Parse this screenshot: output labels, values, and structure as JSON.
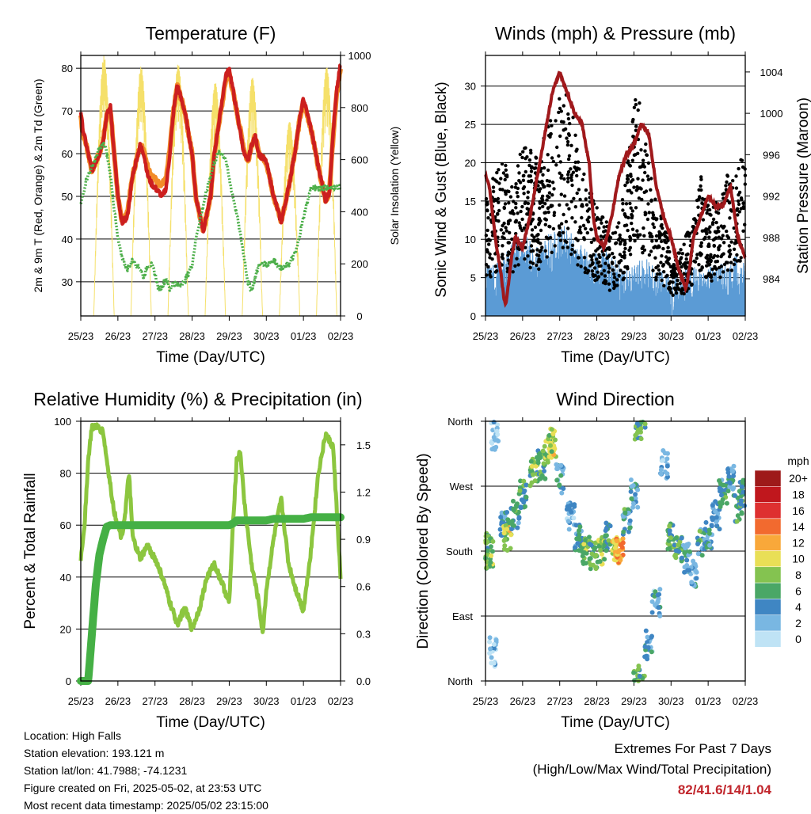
{
  "footer": {
    "location": "Location: High Falls",
    "elevation": "Station elevation: 193.121 m",
    "latlon": "Station lat/lon: 41.7988; -74.1231",
    "created": "Figure created on Fri, 2025-05-02, at 23:53 UTC",
    "recent": "Most recent data timestamp: 2025/05/02 23:15:00"
  },
  "extremes": {
    "line1": "Extremes For Past 7 Days",
    "line2": "(High/Low/Max Wind/Total Precipitation)",
    "values": "82/41.6/14/1.04"
  },
  "colors": {
    "temp_2m": "#cc1f1f",
    "temp_9m": "#f28c28",
    "dewpoint": "#4daf4a",
    "solar": "#f5e06a",
    "wind": "#5b9bd5",
    "gust": "#000000",
    "pressure": "#a0191c",
    "rh": "#8cc63f",
    "precip": "#45b045"
  },
  "chart_data": [
    {
      "type": "line",
      "title": "Temperature (F)",
      "xlabel": "Time (Day/UTC)",
      "ylabel": "2m & 9m T (Red, Orange) & 2m Td (Green)",
      "y2label": "Solar Insolation (Yellow)",
      "xticks": [
        "25/23",
        "26/23",
        "27/23",
        "28/23",
        "29/23",
        "30/23",
        "01/23",
        "02/23"
      ],
      "ylim": [
        22,
        83
      ],
      "yticks": [
        30,
        40,
        50,
        60,
        70,
        80
      ],
      "y2lim": [
        0,
        1000
      ],
      "y2ticks": [
        0,
        200,
        400,
        600,
        800,
        1000
      ],
      "grid": "horizontal",
      "x": [
        0,
        0.05,
        0.15,
        0.3,
        0.4,
        0.5,
        0.6,
        0.65,
        0.7,
        0.8,
        0.9,
        1.0,
        1.1,
        1.25,
        1.4,
        1.6,
        1.7,
        1.8,
        1.9,
        2.0,
        2.1,
        2.2,
        2.3,
        2.4,
        2.5,
        2.6,
        2.8,
        3.0,
        3.1,
        3.3,
        3.5,
        3.6,
        3.7,
        3.8,
        3.9,
        4.0,
        4.2,
        4.4,
        4.5,
        4.6,
        4.7,
        4.8,
        5.0,
        5.2,
        5.4,
        5.6,
        5.8,
        5.9,
        6.0,
        6.2,
        6.4,
        6.6,
        6.7,
        6.8,
        6.9,
        7.0
      ],
      "series": [
        {
          "name": "2m T",
          "values": [
            70,
            66,
            62,
            56,
            58,
            60,
            63,
            66,
            69,
            71,
            60,
            50,
            44,
            45,
            55,
            62,
            60,
            55,
            53,
            52,
            51,
            50,
            52,
            60,
            70,
            76,
            70,
            60,
            50,
            42,
            50,
            60,
            66,
            72,
            78,
            80,
            70,
            60,
            58,
            62,
            64,
            60,
            58,
            50,
            44,
            52,
            62,
            68,
            73,
            66,
            57,
            49,
            51,
            65,
            75,
            81
          ]
        },
        {
          "name": "9m T",
          "values": [
            69,
            65,
            62,
            56,
            58,
            60,
            63,
            66,
            69,
            70,
            60,
            50,
            44,
            46,
            55,
            62,
            61,
            57,
            55,
            54,
            53,
            53,
            54,
            61,
            70,
            76,
            70,
            60,
            50,
            42,
            50,
            60,
            66,
            71,
            77,
            79,
            70,
            61,
            58,
            62,
            64,
            60,
            58,
            50,
            44,
            52,
            62,
            68,
            72,
            66,
            57,
            49,
            51,
            64,
            74,
            80
          ]
        },
        {
          "name": "2m Td",
          "values": [
            48,
            50,
            54,
            57,
            59,
            61,
            62,
            62,
            60,
            55,
            47,
            40,
            36,
            33,
            35,
            33,
            31,
            34,
            34,
            32,
            28,
            29,
            31,
            28,
            30,
            29,
            30,
            34,
            40,
            48,
            55,
            58,
            60,
            60,
            59,
            54,
            46,
            36,
            30,
            28,
            31,
            34,
            34,
            35,
            33,
            34,
            37,
            41,
            45,
            52,
            52,
            52,
            52,
            52,
            52,
            52
          ]
        }
      ],
      "solar": {
        "peaks": [
          1000,
          960,
          970,
          900,
          920,
          750,
          960,
          900
        ]
      }
    },
    {
      "type": "scatter",
      "title": "Winds (mph) & Pressure (mb)",
      "xlabel": "Time (Day/UTC)",
      "ylabel": "Sonic Wind & Gust (Blue, Black)",
      "y2label": "Station Pressure (Maroon)",
      "xticks": [
        "25/23",
        "26/23",
        "27/23",
        "28/23",
        "29/23",
        "30/23",
        "01/23",
        "02/23"
      ],
      "ylim": [
        0,
        34
      ],
      "yticks": [
        0,
        5,
        10,
        15,
        20,
        25,
        30
      ],
      "y2lim": [
        980.4,
        1005.6
      ],
      "y2ticks": [
        984,
        988,
        992,
        996,
        1000,
        1004
      ],
      "grid": "horizontal",
      "series": [
        {
          "name": "Station Pressure",
          "x": [
            0,
            0.1,
            0.2,
            0.3,
            0.4,
            0.5,
            0.55,
            0.6,
            0.7,
            0.8,
            1.0,
            1.2,
            1.4,
            1.6,
            1.8,
            2.0,
            2.2,
            2.4,
            2.6,
            2.8,
            2.9,
            3.0,
            3.2,
            3.4,
            3.6,
            3.8,
            4.0,
            4.2,
            4.4,
            4.6,
            4.8,
            5.0,
            5.2,
            5.4,
            5.5,
            5.6,
            5.8,
            6.0,
            6.2,
            6.4,
            6.6,
            6.8,
            7.0
          ],
          "values": [
            994,
            993,
            990,
            987,
            985,
            982,
            981.5,
            983,
            986,
            988,
            987,
            990,
            994,
            998,
            1002,
            1004,
            1002,
            1000,
            999,
            995,
            990,
            988,
            987,
            990,
            994,
            996,
            997,
            999,
            998,
            993,
            990,
            988,
            985,
            983,
            985,
            988,
            990,
            992,
            991,
            991,
            993,
            988,
            986
          ]
        },
        {
          "name": "Sonic Wind",
          "mean": [
            4,
            4,
            5,
            7,
            8,
            7,
            6,
            8,
            8,
            9,
            7,
            6,
            5,
            6,
            5,
            4,
            3,
            4,
            5,
            3,
            3,
            2,
            3,
            4,
            3,
            4,
            4,
            4,
            5,
            4
          ],
          "x_start": 0,
          "x_end": 7.0
        },
        {
          "name": "Gust",
          "mean": [
            10,
            12,
            13,
            12,
            15,
            14,
            13,
            17,
            18,
            20,
            16,
            12,
            10,
            9,
            7,
            8,
            14,
            20,
            15,
            10,
            8,
            5,
            6,
            8,
            12,
            9,
            10,
            12,
            13,
            14
          ],
          "x_start": 0,
          "x_end": 7.0
        }
      ]
    },
    {
      "type": "line",
      "title": "Relative Humidity (%) & Precipitation (in)",
      "xlabel": "Time (Day/UTC)",
      "ylabel": "Percent & Total Rainfall",
      "xticks": [
        "25/23",
        "26/23",
        "27/23",
        "28/23",
        "29/23",
        "30/23",
        "01/23",
        "02/23"
      ],
      "ylim": [
        0,
        100
      ],
      "yticks": [
        0,
        20,
        40,
        60,
        80,
        100
      ],
      "y2lim": [
        0,
        1.65
      ],
      "y2ticks": [
        "0.0",
        "0.3",
        "0.6",
        "0.9",
        "1.2",
        "1.5"
      ],
      "grid": "horizontal",
      "x": [
        0,
        0.1,
        0.2,
        0.3,
        0.4,
        0.5,
        0.6,
        0.7,
        0.8,
        0.9,
        1.0,
        1.1,
        1.2,
        1.3,
        1.4,
        1.6,
        1.8,
        2.0,
        2.2,
        2.4,
        2.6,
        2.8,
        3.0,
        3.2,
        3.4,
        3.6,
        3.8,
        4.0,
        4.1,
        4.2,
        4.3,
        4.4,
        4.6,
        4.8,
        4.9,
        5.0,
        5.2,
        5.4,
        5.6,
        5.8,
        6.0,
        6.2,
        6.4,
        6.6,
        6.8,
        7.0
      ],
      "series": [
        {
          "name": "Relative Humidity",
          "values": [
            47,
            60,
            85,
            98,
            98,
            97,
            96,
            85,
            75,
            65,
            60,
            55,
            65,
            80,
            55,
            47,
            52,
            47,
            40,
            30,
            22,
            28,
            20,
            28,
            40,
            45,
            38,
            30,
            60,
            85,
            88,
            70,
            45,
            30,
            18,
            35,
            55,
            70,
            45,
            35,
            27,
            50,
            80,
            95,
            90,
            40
          ]
        },
        {
          "name": "Total Precipitation",
          "values": [
            0,
            0,
            0,
            0.3,
            0.6,
            0.8,
            0.9,
            0.98,
            0.99,
            0.99,
            0.99,
            0.99,
            0.99,
            0.99,
            0.99,
            0.99,
            0.99,
            0.99,
            0.99,
            0.99,
            0.99,
            0.99,
            0.99,
            0.99,
            0.99,
            0.99,
            0.99,
            0.99,
            1.0,
            1.02,
            1.02,
            1.02,
            1.02,
            1.02,
            1.02,
            1.02,
            1.03,
            1.03,
            1.03,
            1.03,
            1.03,
            1.04,
            1.04,
            1.04,
            1.04,
            1.04
          ]
        }
      ]
    },
    {
      "type": "scatter",
      "title": "Wind Direction",
      "xlabel": "Time (Day/UTC)",
      "ylabel": "Direction (Colored By Speed)",
      "xticks": [
        "25/23",
        "26/23",
        "27/23",
        "28/23",
        "29/23",
        "30/23",
        "01/23",
        "02/23"
      ],
      "yticks": [
        "North",
        "East",
        "South",
        "West",
        "North"
      ],
      "ylim": [
        0,
        360
      ],
      "grid": "horizontal",
      "legend": {
        "position": "right",
        "title": "mph",
        "labels": [
          "20+",
          "18",
          "16",
          "14",
          "12",
          "10",
          "8",
          "6",
          "4",
          "2",
          "0"
        ],
        "colors": [
          "#9e1a1a",
          "#c0171d",
          "#de3030",
          "#f26a2f",
          "#f9a83a",
          "#e9df56",
          "#84c350",
          "#4aa766",
          "#3f86c3",
          "#79b7e2",
          "#bfe3f5"
        ]
      },
      "points": [
        {
          "x": 0.05,
          "dir": 185,
          "speed": 7
        },
        {
          "x": 0.1,
          "dir": 175,
          "speed": 8
        },
        {
          "x": 0.2,
          "dir": 40,
          "speed": 1
        },
        {
          "x": 0.25,
          "dir": 340,
          "speed": 1
        },
        {
          "x": 0.5,
          "dir": 220,
          "speed": 4
        },
        {
          "x": 0.6,
          "dir": 200,
          "speed": 9
        },
        {
          "x": 0.8,
          "dir": 230,
          "speed": 5
        },
        {
          "x": 1.0,
          "dir": 260,
          "speed": 6
        },
        {
          "x": 1.3,
          "dir": 290,
          "speed": 7
        },
        {
          "x": 1.5,
          "dir": 300,
          "speed": 6
        },
        {
          "x": 1.7,
          "dir": 320,
          "speed": 8
        },
        {
          "x": 1.8,
          "dir": 330,
          "speed": 9
        },
        {
          "x": 2.0,
          "dir": 280,
          "speed": 4
        },
        {
          "x": 2.3,
          "dir": 230,
          "speed": 3
        },
        {
          "x": 2.5,
          "dir": 200,
          "speed": 5
        },
        {
          "x": 2.7,
          "dir": 180,
          "speed": 7
        },
        {
          "x": 2.9,
          "dir": 175,
          "speed": 6
        },
        {
          "x": 3.1,
          "dir": 180,
          "speed": 8
        },
        {
          "x": 3.3,
          "dir": 200,
          "speed": 5
        },
        {
          "x": 3.5,
          "dir": 180,
          "speed": 11
        },
        {
          "x": 3.6,
          "dir": 185,
          "speed": 12
        },
        {
          "x": 3.8,
          "dir": 220,
          "speed": 5
        },
        {
          "x": 4.0,
          "dir": 260,
          "speed": 4
        },
        {
          "x": 4.1,
          "dir": 355,
          "speed": 6
        },
        {
          "x": 4.2,
          "dir": 5,
          "speed": 7
        },
        {
          "x": 4.4,
          "dir": 50,
          "speed": 3
        },
        {
          "x": 4.6,
          "dir": 110,
          "speed": 3
        },
        {
          "x": 4.8,
          "dir": 300,
          "speed": 2
        },
        {
          "x": 5.0,
          "dir": 200,
          "speed": 7
        },
        {
          "x": 5.2,
          "dir": 180,
          "speed": 6
        },
        {
          "x": 5.4,
          "dir": 170,
          "speed": 4
        },
        {
          "x": 5.6,
          "dir": 150,
          "speed": 3
        },
        {
          "x": 5.8,
          "dir": 190,
          "speed": 5
        },
        {
          "x": 6.0,
          "dir": 200,
          "speed": 4
        },
        {
          "x": 6.2,
          "dir": 230,
          "speed": 3
        },
        {
          "x": 6.4,
          "dir": 260,
          "speed": 5
        },
        {
          "x": 6.6,
          "dir": 280,
          "speed": 4
        },
        {
          "x": 6.8,
          "dir": 240,
          "speed": 6
        },
        {
          "x": 6.95,
          "dir": 260,
          "speed": 5
        }
      ]
    }
  ]
}
